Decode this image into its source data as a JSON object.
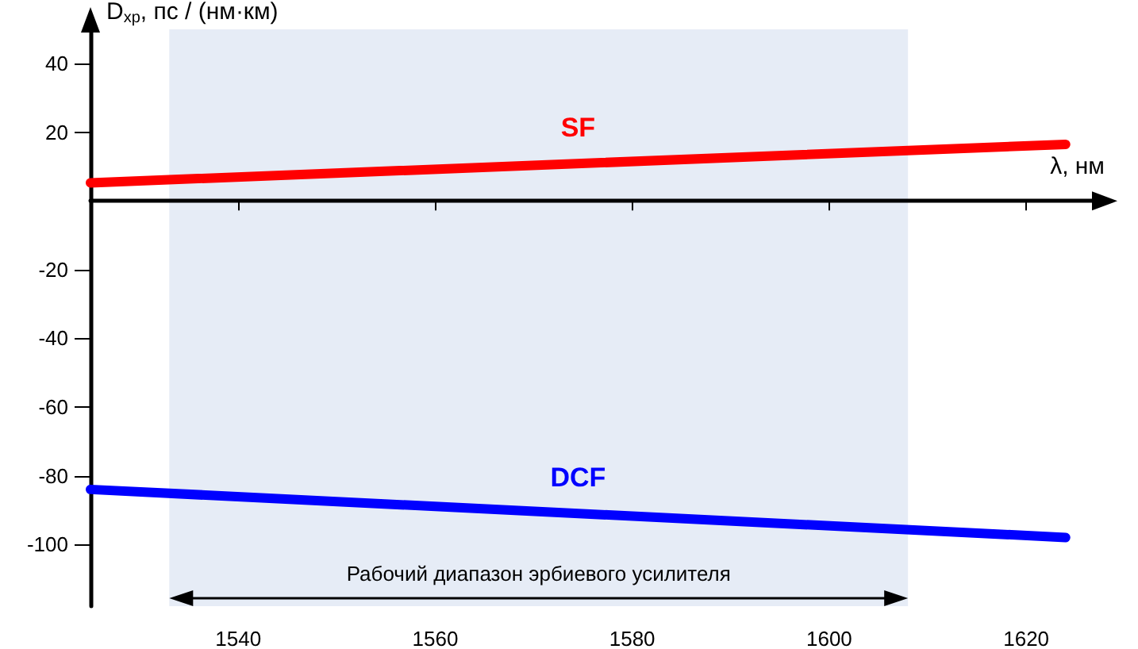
{
  "chart_data": {
    "type": "line",
    "xlabel": "λ, нм",
    "ylabel": "D$_{хр}$, пс / (нм·км)",
    "x": [
      1525,
      1624
    ],
    "series": [
      {
        "name": "SF",
        "color": "#ff0000",
        "values": [
          5.3,
          16.5
        ]
      },
      {
        "name": "DCF",
        "color": "#0000ff",
        "values": [
          -84,
          -98
        ]
      }
    ],
    "xlim": [
      1525,
      1627
    ],
    "ylim": [
      -118,
      50
    ],
    "xticks": [
      1540,
      1560,
      1580,
      1600,
      1620
    ],
    "yticks": [
      -100,
      -80,
      -60,
      -40,
      -20,
      20,
      40
    ],
    "bands": [
      {
        "axis": "x",
        "from": 1533,
        "to": 1608,
        "label": "Рабочий диапазон эрбиевого усилителя",
        "color": "#e6ecf6"
      }
    ],
    "grid": false,
    "legend": false,
    "marker": "none",
    "line_style": "solid"
  }
}
